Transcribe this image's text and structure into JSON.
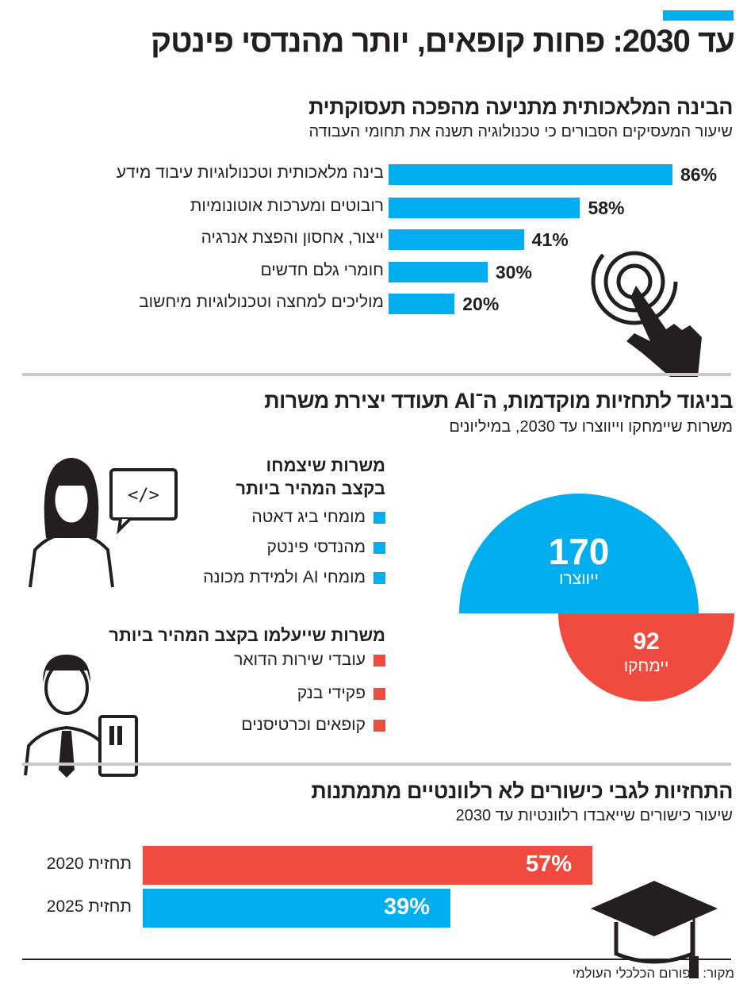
{
  "title": "עד 2030: פחות קופאים, יותר מהנדסי פינטק",
  "colors": {
    "blue": "#00aeef",
    "red": "#ef4b3f",
    "divider": "#c9c9c9"
  },
  "section1": {
    "title": "הבינה המלאכותית מתניעה מהפכה תעסוקתית",
    "subtitle": "שיעור המעסיקים הסבורים כי טכנולוגיה תשנה את תחומי העבודה",
    "icon": "touch-hand-icon"
  },
  "section2": {
    "title": "בניגוד לתחזיות מוקדמות, ה־AI תעודד יצירת משרות",
    "subtitle": "משרות שיימחקו וייווצרו עד 2030, במיליונים",
    "growing": {
      "heading_line1": "משרות שיצמחו",
      "heading_line2": "בקצב המהיר ביותר",
      "items": [
        "מומחי ביג דאטה",
        "מהנדסי פינטק",
        "מומחי AI ולמידת מכונה"
      ],
      "icon": "woman-developer-icon"
    },
    "declining": {
      "heading": "משרות שייעלמו בקצב המהיר ביותר",
      "items": [
        "עובדי שירות הדואר",
        "פקידי בנק",
        "קופאים וכרטיסנים"
      ],
      "icon": "man-with-card-icon"
    }
  },
  "section3": {
    "title": "התחזיות לגבי כישורים לא רלוונטיים מתמתנות",
    "subtitle": "שיעור כישורים שייאבדו רלוונטיות עד 2030",
    "icon": "graduation-cap-icon"
  },
  "source": "מקור: הפורום הכלכלי העולמי",
  "chart_data": [
    {
      "type": "bar",
      "orientation": "horizontal",
      "categories": [
        "בינה מלאכותית וטכנולוגיות עיבוד מידע",
        "רובוטים ומערכות אוטונומיות",
        "ייצור, אחסון והפצת אנרגיה",
        "חומרי גלם חדשים",
        "מוליכים למחצה וטכנולוגיות מיחשוב"
      ],
      "values": [
        86,
        58,
        41,
        30,
        20
      ],
      "labels": [
        "86%",
        "58%",
        "41%",
        "30%",
        "20%"
      ],
      "color": "#00aeef"
    },
    {
      "type": "semicircle-comparison",
      "series": [
        {
          "name": "ייווצרו",
          "value": 170,
          "label": "170",
          "color": "#00aeef"
        },
        {
          "name": "יימחקו",
          "value": 92,
          "label": "92",
          "color": "#ef4b3f"
        }
      ]
    },
    {
      "type": "bar",
      "orientation": "horizontal",
      "categories": [
        "תחזית 2020",
        "תחזית 2025"
      ],
      "values": [
        57,
        39
      ],
      "labels": [
        "57%",
        "39%"
      ],
      "colors": [
        "#ef4b3f",
        "#00aeef"
      ]
    }
  ]
}
